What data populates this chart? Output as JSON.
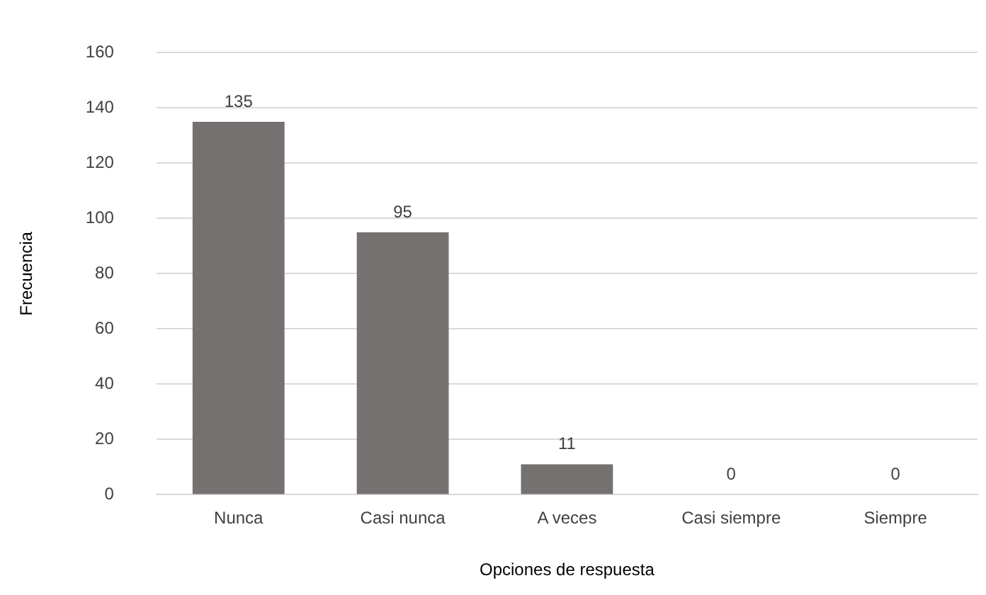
{
  "chart_data": {
    "type": "bar",
    "xlabel": "Opciones de respuesta",
    "ylabel": "Frecuencia",
    "categories": [
      "Nunca",
      "Casi nunca",
      "A veces",
      "Casi siempre",
      "Siempre"
    ],
    "values": [
      135,
      95,
      11,
      0,
      0
    ],
    "color": "#767171",
    "ylim": [
      0,
      160
    ],
    "yticks": [
      0,
      20,
      40,
      60,
      80,
      100,
      120,
      140,
      160
    ],
    "grid": "y",
    "data_labels": true,
    "legend": false
  }
}
